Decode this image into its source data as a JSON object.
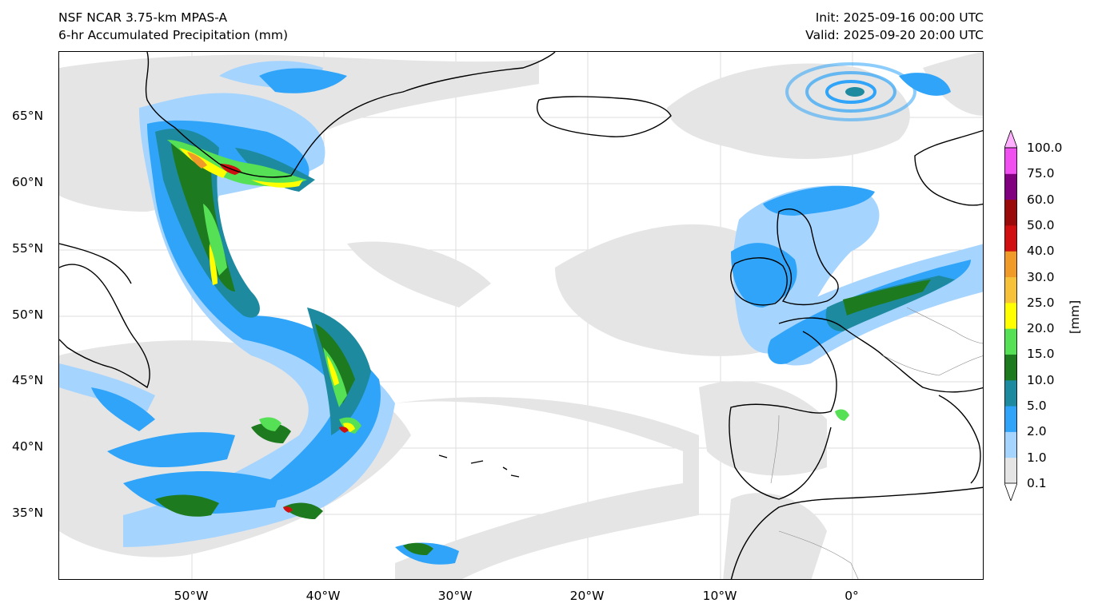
{
  "header": {
    "model": "NSF NCAR 3.75-km MPAS-A",
    "field": "6-hr Accumulated Precipitation (mm)",
    "init": "Init: 2025-09-16 00:00 UTC",
    "valid": "Valid: 2025-09-20 20:00 UTC"
  },
  "axes": {
    "lat_labels": [
      "65°N",
      "60°N",
      "55°N",
      "50°N",
      "45°N",
      "40°N",
      "35°N"
    ],
    "lon_labels": [
      "50°W",
      "40°W",
      "30°W",
      "20°W",
      "10°W",
      "0°"
    ],
    "lon_range": [
      -60,
      10
    ],
    "lat_range": [
      30,
      70
    ]
  },
  "colorbar": {
    "unit": "[mm]",
    "levels": [
      "0.1",
      "1.0",
      "2.0",
      "5.0",
      "10.0",
      "15.0",
      "20.0",
      "25.0",
      "30.0",
      "40.0",
      "50.0",
      "60.0",
      "75.0",
      "100.0"
    ],
    "colors": [
      "#e5e5e5",
      "#a5d4ff",
      "#2fa4f8",
      "#1d8aa0",
      "#1e7a1e",
      "#55e055",
      "#ffff00",
      "#f5c23a",
      "#f09a2a",
      "#d01010",
      "#9b0a0a",
      "#800080",
      "#f050f0"
    ],
    "under_color": "#ffffff",
    "over_color": "#ffb0ff"
  },
  "colors": {
    "coast": "#000000",
    "border": "#888888",
    "grid": "#dddddd",
    "light": "#e5e5e5",
    "pale_blue": "#a5d4ff",
    "blue": "#2fa4f8",
    "teal": "#1d8aa0",
    "dark_green": "#1e7a1e",
    "green": "#55e055",
    "yellow": "#ffff00",
    "orange": "#f09a2a",
    "red": "#d01010"
  }
}
